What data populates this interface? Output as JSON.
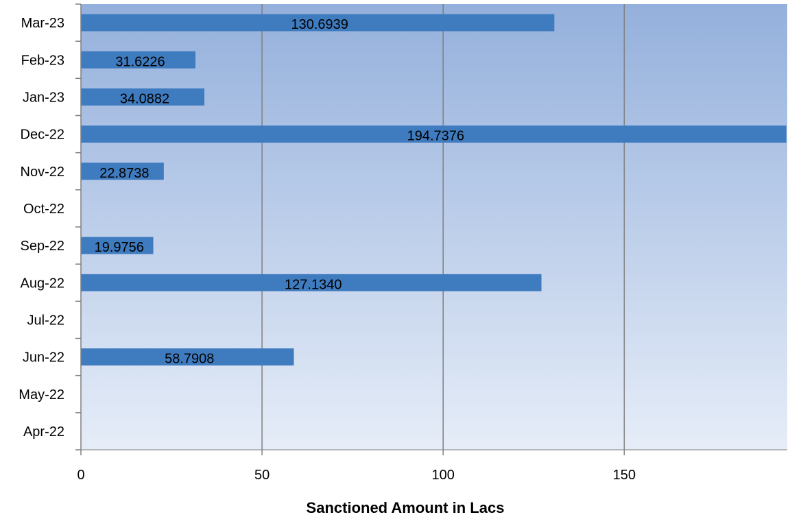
{
  "chart_data": {
    "type": "bar",
    "orientation": "horizontal",
    "categories": [
      "Apr-22",
      "May-22",
      "Jun-22",
      "Jul-22",
      "Aug-22",
      "Sep-22",
      "Oct-22",
      "Nov-22",
      "Dec-22",
      "Jan-23",
      "Feb-23",
      "Mar-23"
    ],
    "values": [
      null,
      null,
      58.7908,
      null,
      127.134,
      19.9756,
      null,
      22.8738,
      194.7376,
      34.0882,
      31.6226,
      130.6939
    ],
    "value_labels": [
      "",
      "",
      "58.7908",
      "",
      "127.1340",
      "19.9756",
      "",
      "22.8738",
      "194.7376",
      "34.0882",
      "31.6226",
      "130.6939"
    ],
    "xlabel": "Sanctioned Amount in Lacs",
    "ylabel": "",
    "xlim": [
      0,
      195
    ],
    "xticks": [
      "0",
      "50",
      "100",
      "150"
    ],
    "grid": true,
    "legend": "none",
    "colors": {
      "bar": "#3f7bbf",
      "plot_bg_top": "#94b0dc",
      "plot_bg_bottom": "#e6edf8",
      "grid": "#7f7f7f",
      "axis": "#7f7f7f"
    }
  }
}
